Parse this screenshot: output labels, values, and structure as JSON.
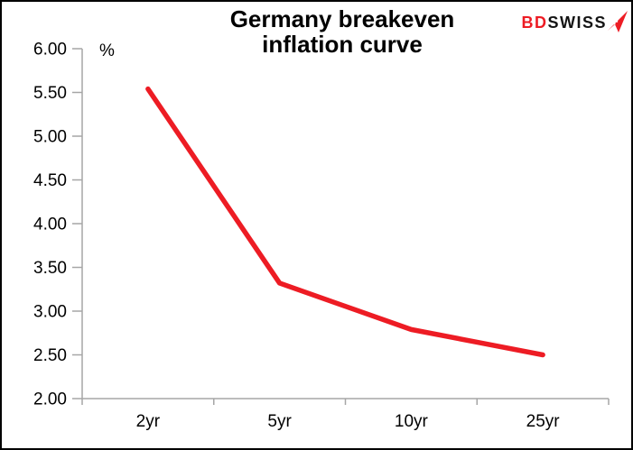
{
  "page": {
    "background": "#ffffff",
    "border_color": "#000000"
  },
  "header": {
    "title_line1": "Germany breakeven",
    "title_line2": "inflation curve"
  },
  "logo": {
    "part1": "BD",
    "part2": "SWISS",
    "part1_color": "#ed1c24",
    "part2_color": "#141414",
    "arrow_color": "#ed1c24",
    "cross_color": "#ffffff"
  },
  "chart_data": {
    "type": "line",
    "title": "Germany breakeven inflation curve",
    "unit_label": "%",
    "categories": [
      "2yr",
      "5yr",
      "10yr",
      "25yr"
    ],
    "values": [
      5.54,
      3.32,
      2.79,
      2.5
    ],
    "yticks": [
      "6.00",
      "5.50",
      "5.00",
      "4.50",
      "4.00",
      "3.50",
      "3.00",
      "2.50",
      "2.00"
    ],
    "ylim": [
      2.0,
      6.0
    ],
    "ytick_step": 0.5,
    "grid": false,
    "legend": false,
    "line_color": "#ed1c24",
    "axis_color": "#a6a6a6",
    "tick_label_color": "#000000"
  }
}
